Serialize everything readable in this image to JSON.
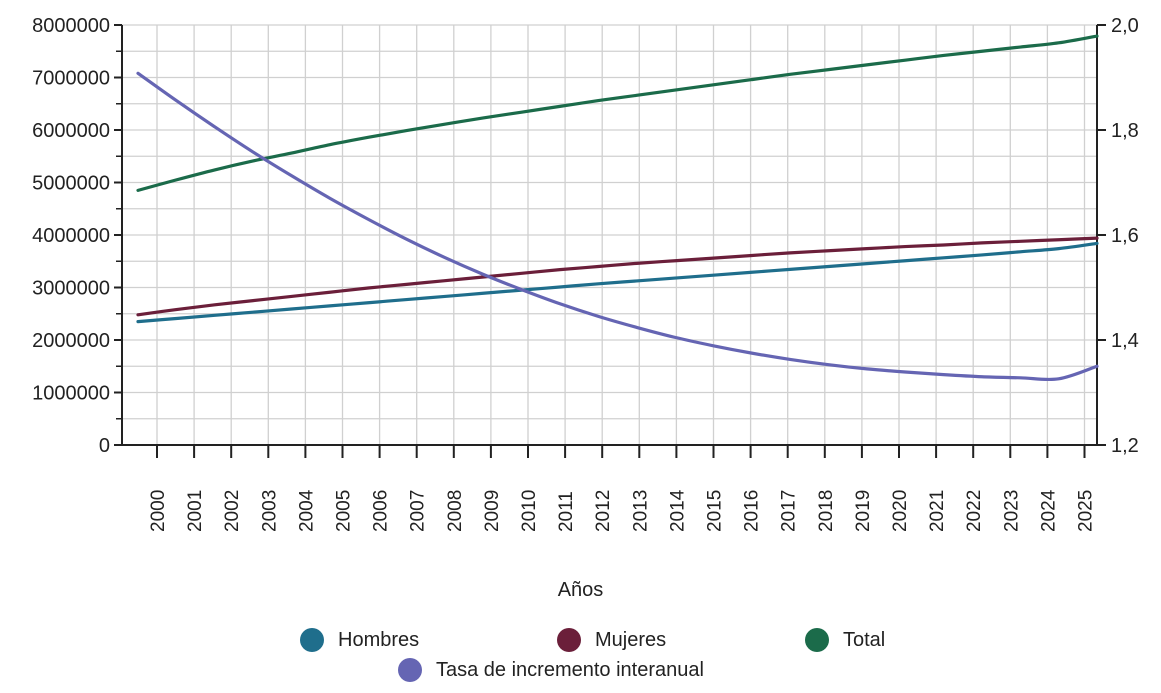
{
  "chart_data": {
    "type": "line",
    "xlabel": "Años",
    "categories": [
      "2000",
      "2001",
      "2002",
      "2003",
      "2004",
      "2005",
      "2006",
      "2007",
      "2008",
      "2009",
      "2010",
      "2011",
      "2012",
      "2013",
      "2014",
      "2015",
      "2016",
      "2017",
      "2018",
      "2019",
      "2020",
      "2021",
      "2022",
      "2023",
      "2024",
      "2025"
    ],
    "y_left": {
      "ylim": [
        0,
        8000000
      ],
      "ticks": [
        "0",
        "1000000",
        "2000000",
        "3000000",
        "4000000",
        "5000000",
        "6000000",
        "7000000",
        "8000000"
      ]
    },
    "y_right": {
      "ylim": [
        1.2,
        2.0
      ],
      "ticks": [
        "1,2",
        "1,4",
        "1,6",
        "1,8",
        "2,0"
      ]
    },
    "grid": true,
    "legend_position": "bottom",
    "series": [
      {
        "name": "Hombres",
        "axis": "left",
        "color": "#1f6e8c",
        "values": [
          2350000,
          2410000,
          2470000,
          2530000,
          2590000,
          2650000,
          2710000,
          2770000,
          2830000,
          2890000,
          2950000,
          3010000,
          3070000,
          3125000,
          3180000,
          3235000,
          3290000,
          3345000,
          3400000,
          3455000,
          3510000,
          3565000,
          3620000,
          3680000,
          3740000,
          3840000
        ]
      },
      {
        "name": "Mujeres",
        "axis": "left",
        "color": "#6b1f3a",
        "values": [
          2480000,
          2580000,
          2670000,
          2750000,
          2830000,
          2910000,
          2990000,
          3060000,
          3130000,
          3200000,
          3270000,
          3340000,
          3400000,
          3460000,
          3510000,
          3560000,
          3610000,
          3660000,
          3700000,
          3740000,
          3780000,
          3810000,
          3850000,
          3880000,
          3910000,
          3940000
        ]
      },
      {
        "name": "Total",
        "axis": "left",
        "color": "#1b6b4a",
        "values": [
          4850000,
          5050000,
          5240000,
          5410000,
          5560000,
          5720000,
          5860000,
          5990000,
          6110000,
          6230000,
          6340000,
          6450000,
          6560000,
          6660000,
          6760000,
          6860000,
          6960000,
          7060000,
          7150000,
          7240000,
          7330000,
          7420000,
          7500000,
          7580000,
          7660000,
          7790000
        ]
      },
      {
        "name": "Tasa de incremento interanual",
        "axis": "right",
        "color": "#6565b3",
        "values": [
          1.908,
          1.856,
          1.806,
          1.758,
          1.713,
          1.67,
          1.63,
          1.592,
          1.557,
          1.525,
          1.496,
          1.469,
          1.445,
          1.424,
          1.405,
          1.389,
          1.375,
          1.363,
          1.353,
          1.345,
          1.339,
          1.334,
          1.33,
          1.328,
          1.326,
          1.35
        ]
      }
    ]
  }
}
